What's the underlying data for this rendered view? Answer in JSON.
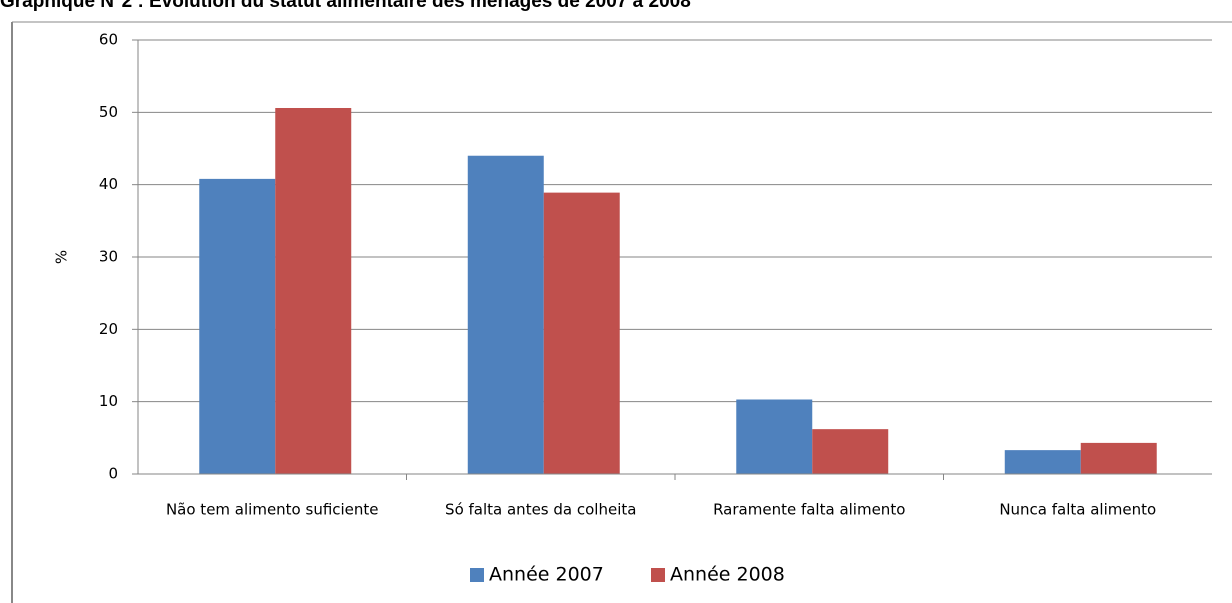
{
  "chart_data": {
    "type": "bar",
    "title": "Graphique N°2 : Evolution du statut alimentaire des ménages de 2007 à 2008",
    "y_label": "%",
    "categories": [
      "Não tem alimento suficiente",
      "Só falta antes da colheita",
      "Raramente falta alimento",
      "Nunca falta alimento"
    ],
    "series": [
      {
        "name": "Année 2007",
        "color": "#4f81bd",
        "values": [
          40.8,
          44,
          10.3,
          3.3
        ]
      },
      {
        "name": "Année 2008",
        "color": "#c0504d",
        "values": [
          50.6,
          38.9,
          6.2,
          4.3
        ]
      }
    ],
    "ylim": [
      0,
      60
    ],
    "yticks": [
      0,
      10,
      20,
      30,
      40,
      50,
      60
    ],
    "grid": true,
    "legend": "bottom"
  }
}
